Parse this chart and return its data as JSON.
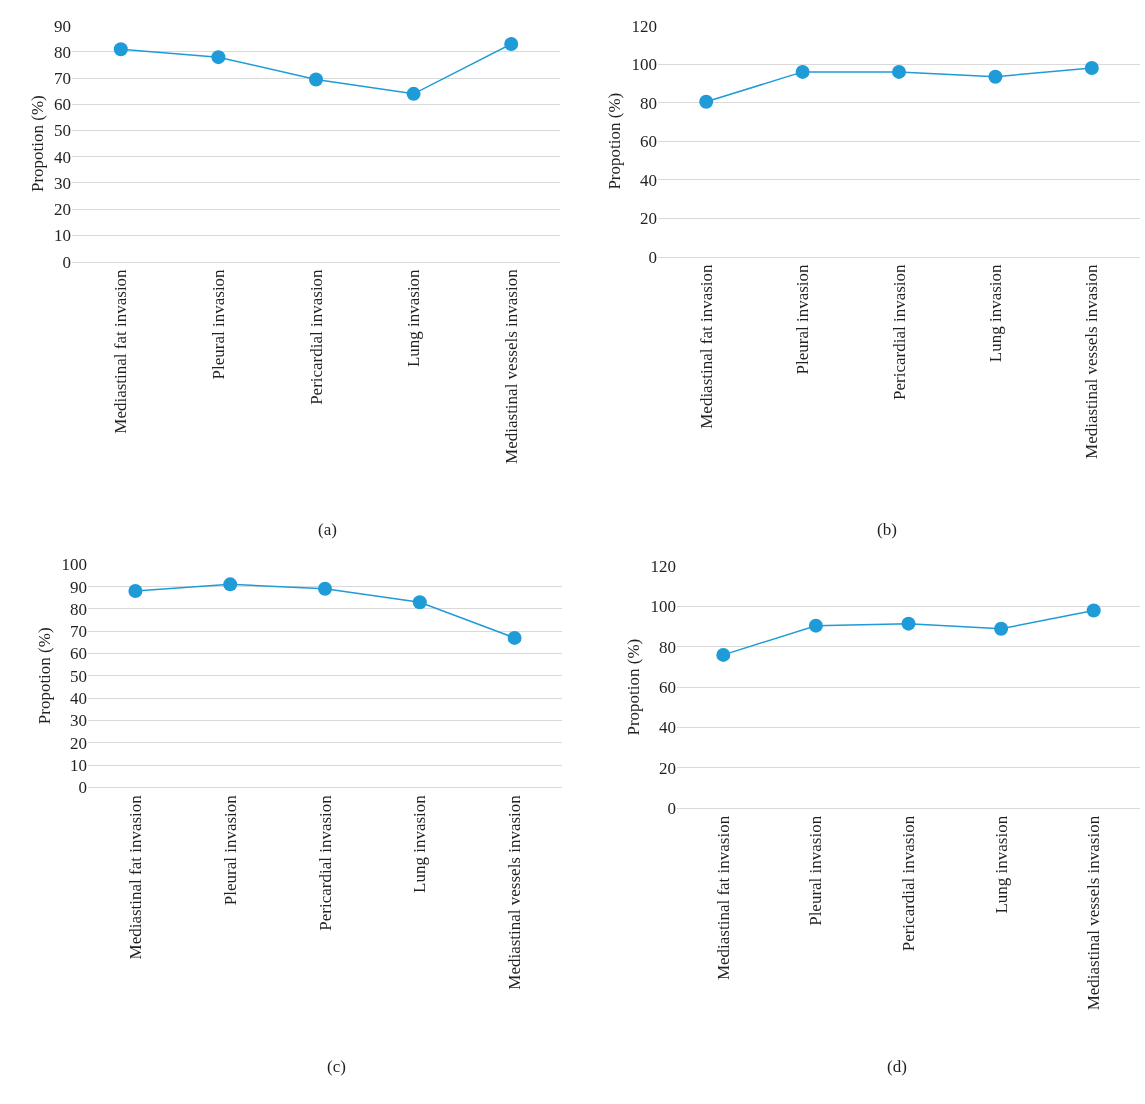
{
  "chart_data": [
    {
      "type": "line",
      "ylabel": "Propotion (%)",
      "categories": [
        "Mediastinal fat invasion",
        "Pleural invasion",
        "Pericardial invasion",
        "Lung invasion",
        "Mediastinal vessels invasion"
      ],
      "series": [
        {
          "color": "#1f9bd7",
          "values": [
            81,
            78,
            69.5,
            64,
            83
          ]
        }
      ],
      "ylim": [
        0,
        90
      ],
      "yticks": [
        0,
        10,
        20,
        30,
        40,
        50,
        60,
        70,
        80,
        90
      ],
      "grid": "y",
      "marker": "circle",
      "line_style": "solid",
      "annotations": [
        "(a)"
      ]
    },
    {
      "type": "line",
      "ylabel": "Propotion (%)",
      "categories": [
        "Mediastinal fat invasion",
        "Pleural invasion",
        "Pericardial invasion",
        "Lung invasion",
        "Mediastinal vessels invasion"
      ],
      "series": [
        {
          "color": "#1f9bd7",
          "values": [
            80.5,
            96,
            96,
            93.5,
            98
          ]
        }
      ],
      "ylim": [
        0,
        120
      ],
      "yticks": [
        0,
        20,
        40,
        60,
        80,
        100,
        120
      ],
      "grid": "y",
      "marker": "circle",
      "line_style": "solid",
      "annotations": [
        "(b)"
      ]
    },
    {
      "type": "line",
      "ylabel": "Propotion (%)",
      "categories": [
        "Mediastinal fat invasion",
        "Pleural invasion",
        "Pericardial invasion",
        "Lung invasion",
        "Mediastinal vessels invasion"
      ],
      "series": [
        {
          "color": "#1f9bd7",
          "values": [
            88,
            91,
            89,
            83,
            67
          ]
        }
      ],
      "ylim": [
        0,
        100
      ],
      "yticks": [
        0,
        10,
        20,
        30,
        40,
        50,
        60,
        70,
        80,
        90,
        100
      ],
      "grid": "y",
      "marker": "circle",
      "line_style": "solid",
      "annotations": [
        "(c)"
      ]
    },
    {
      "type": "line",
      "ylabel": "Propotion (%)",
      "categories": [
        "Mediastinal fat invasion",
        "Pleural invasion",
        "Pericardial invasion",
        "Lung invasion",
        "Mediastinal vessels invasion"
      ],
      "series": [
        {
          "color": "#1f9bd7",
          "values": [
            76,
            90.5,
            91.5,
            89,
            98
          ]
        }
      ],
      "ylim": [
        0,
        120
      ],
      "yticks": [
        0,
        20,
        40,
        60,
        80,
        100,
        120
      ],
      "grid": "y",
      "marker": "circle",
      "line_style": "solid",
      "annotations": [
        "(d)"
      ]
    }
  ]
}
